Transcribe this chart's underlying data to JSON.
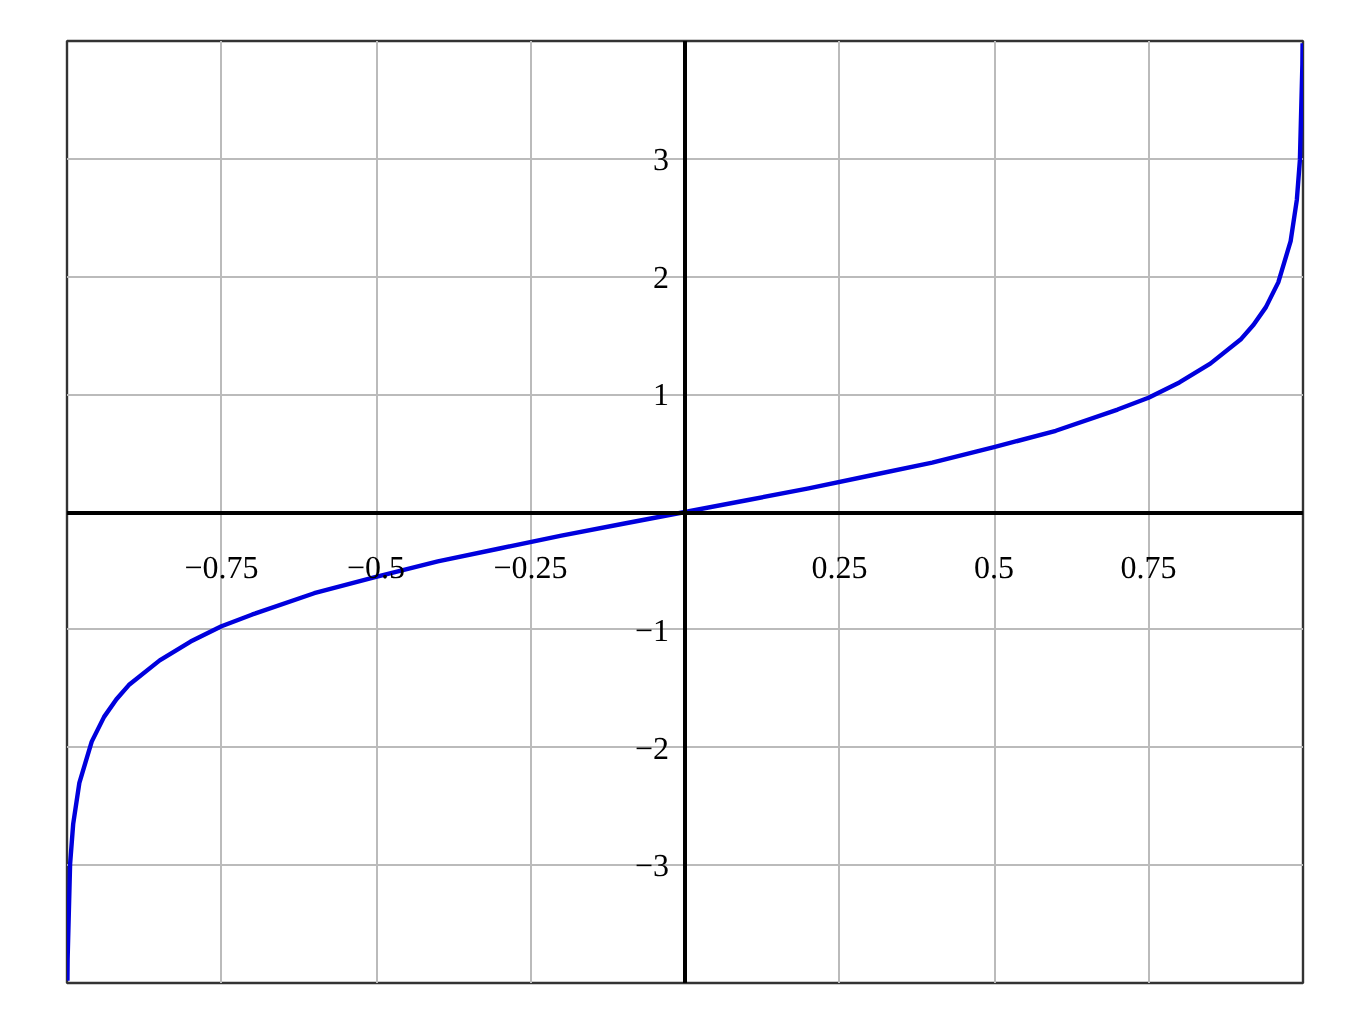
{
  "chart_data": {
    "type": "line",
    "x": [
      -0.9993,
      -0.999,
      -0.995,
      -0.99,
      -0.98,
      -0.96,
      -0.94,
      -0.92,
      -0.9,
      -0.85,
      -0.8,
      -0.75,
      -0.7,
      -0.6,
      -0.5,
      -0.4,
      -0.3,
      -0.2,
      -0.1,
      0,
      0.1,
      0.2,
      0.3,
      0.4,
      0.5,
      0.6,
      0.7,
      0.75,
      0.8,
      0.85,
      0.9,
      0.92,
      0.94,
      0.96,
      0.98,
      0.99,
      0.995,
      0.999,
      0.9993
    ],
    "series": [
      {
        "color": "#0000dd",
        "values": [
          -3.98,
          -3.8,
          -2.99,
          -2.65,
          -2.3,
          -1.95,
          -1.74,
          -1.59,
          -1.47,
          -1.26,
          -1.1,
          -0.97,
          -0.87,
          -0.69,
          -0.55,
          -0.42,
          -0.31,
          -0.2,
          -0.1,
          0,
          0.1,
          0.2,
          0.31,
          0.42,
          0.55,
          0.69,
          0.87,
          0.97,
          1.1,
          1.26,
          1.47,
          1.59,
          1.74,
          1.95,
          2.3,
          2.65,
          2.99,
          3.8,
          3.98
        ]
      }
    ],
    "xlim": [
      -1,
      1
    ],
    "ylim": [
      -4,
      4
    ],
    "xticks": [
      -0.75,
      -0.5,
      -0.25,
      0.25,
      0.5,
      0.75
    ],
    "yticks": [
      -3,
      -2,
      -1,
      1,
      2,
      3
    ],
    "grid": true
  }
}
